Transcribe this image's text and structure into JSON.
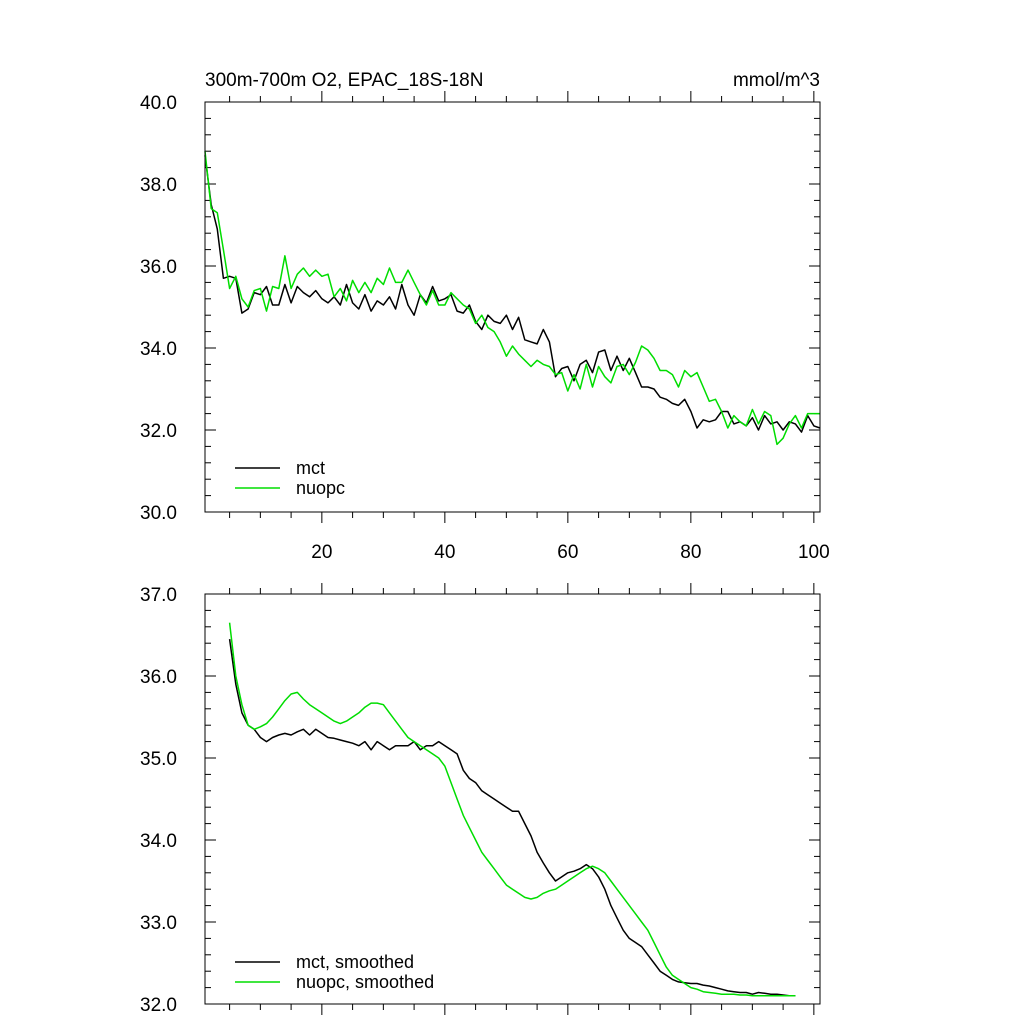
{
  "chart_data": [
    {
      "type": "line",
      "title_left": "300m-700m O2, EPAC_18S-18N",
      "title_right": "mmol/m^3",
      "xlim": [
        1,
        101
      ],
      "ylim": [
        30,
        40
      ],
      "x_ticks": [
        20,
        40,
        60,
        80,
        100
      ],
      "x_tick_labels": [
        "20",
        "40",
        "60",
        "80",
        "100"
      ],
      "y_ticks": [
        30,
        32,
        34,
        36,
        38,
        40
      ],
      "y_tick_labels": [
        "30.0",
        "32.0",
        "34.0",
        "36.0",
        "38.0",
        "40.0"
      ],
      "legend_position": "bottom-left",
      "series": [
        {
          "name": "mct",
          "color": "#000000",
          "x": [
            1,
            2,
            3,
            4,
            5,
            6,
            7,
            8,
            9,
            10,
            11,
            12,
            13,
            14,
            15,
            16,
            17,
            18,
            19,
            20,
            21,
            22,
            23,
            24,
            25,
            26,
            27,
            28,
            29,
            30,
            31,
            32,
            33,
            34,
            35,
            36,
            37,
            38,
            39,
            40,
            41,
            42,
            43,
            44,
            45,
            46,
            47,
            48,
            49,
            50,
            51,
            52,
            53,
            54,
            55,
            56,
            57,
            58,
            59,
            60,
            61,
            62,
            63,
            64,
            65,
            66,
            67,
            68,
            69,
            70,
            71,
            72,
            73,
            74,
            75,
            76,
            77,
            78,
            79,
            80,
            81,
            82,
            83,
            84,
            85,
            86,
            87,
            88,
            89,
            90,
            91,
            92,
            93,
            94,
            95,
            96,
            97,
            98,
            99,
            100,
            101
          ],
          "y": [
            38.7,
            37.5,
            36.9,
            35.7,
            35.75,
            35.7,
            34.85,
            34.95,
            35.35,
            35.3,
            35.5,
            35.05,
            35.05,
            35.55,
            35.1,
            35.5,
            35.35,
            35.25,
            35.4,
            35.2,
            35.1,
            35.25,
            35.05,
            35.55,
            35.1,
            34.95,
            35.3,
            34.9,
            35.15,
            35.05,
            35.25,
            34.95,
            35.55,
            35.05,
            34.8,
            35.3,
            35.1,
            35.5,
            35.15,
            35.2,
            35.3,
            34.9,
            34.85,
            35.05,
            34.65,
            34.45,
            34.8,
            34.65,
            34.6,
            34.8,
            34.45,
            34.75,
            34.2,
            34.15,
            34.1,
            34.45,
            34.15,
            33.3,
            33.5,
            33.55,
            33.2,
            33.6,
            33.7,
            33.4,
            33.9,
            33.95,
            33.45,
            33.8,
            33.45,
            33.75,
            33.4,
            33.05,
            33.05,
            33.0,
            32.8,
            32.75,
            32.65,
            32.6,
            32.75,
            32.45,
            32.05,
            32.25,
            32.2,
            32.25,
            32.45,
            32.45,
            32.15,
            32.2,
            32.1,
            32.3,
            32.0,
            32.35,
            32.15,
            32.2,
            32.0,
            32.2,
            32.15,
            31.95,
            32.35,
            32.1,
            32.05
          ]
        },
        {
          "name": "nuopc",
          "color": "#00dd00",
          "x": [
            1,
            2,
            3,
            4,
            5,
            6,
            7,
            8,
            9,
            10,
            11,
            12,
            13,
            14,
            15,
            16,
            17,
            18,
            19,
            20,
            21,
            22,
            23,
            24,
            25,
            26,
            27,
            28,
            29,
            30,
            31,
            32,
            33,
            34,
            35,
            36,
            37,
            38,
            39,
            40,
            41,
            42,
            43,
            44,
            45,
            46,
            47,
            48,
            49,
            50,
            51,
            52,
            53,
            54,
            55,
            56,
            57,
            58,
            59,
            60,
            61,
            62,
            63,
            64,
            65,
            66,
            67,
            68,
            69,
            70,
            71,
            72,
            73,
            74,
            75,
            76,
            77,
            78,
            79,
            80,
            81,
            82,
            83,
            84,
            85,
            86,
            87,
            88,
            89,
            90,
            91,
            92,
            93,
            94,
            95,
            96,
            97,
            98,
            99,
            100,
            101
          ],
          "y": [
            38.8,
            37.4,
            37.3,
            36.4,
            35.45,
            35.75,
            35.2,
            35.0,
            35.4,
            35.45,
            34.9,
            35.5,
            35.45,
            36.25,
            35.45,
            35.8,
            35.95,
            35.75,
            35.9,
            35.75,
            35.8,
            35.25,
            35.45,
            35.15,
            35.65,
            35.35,
            35.6,
            35.35,
            35.7,
            35.55,
            35.95,
            35.6,
            35.6,
            35.9,
            35.6,
            35.3,
            35.05,
            35.4,
            35.05,
            35.05,
            35.35,
            35.2,
            35.05,
            34.95,
            34.6,
            34.8,
            34.5,
            34.4,
            34.15,
            33.8,
            34.05,
            33.85,
            33.7,
            33.55,
            33.7,
            33.6,
            33.55,
            33.35,
            33.4,
            32.95,
            33.35,
            33.0,
            33.6,
            33.05,
            33.55,
            33.3,
            33.15,
            33.55,
            33.6,
            33.35,
            33.65,
            34.05,
            33.95,
            33.75,
            33.45,
            33.45,
            33.35,
            33.05,
            33.45,
            33.3,
            33.4,
            33.05,
            32.7,
            32.75,
            32.45,
            32.05,
            32.35,
            32.2,
            32.1,
            32.5,
            32.15,
            32.45,
            32.35,
            31.65,
            31.8,
            32.15,
            32.35,
            32.05,
            32.4,
            32.4,
            32.4
          ]
        }
      ]
    },
    {
      "type": "line",
      "xlim": [
        1,
        101
      ],
      "ylim": [
        32,
        37
      ],
      "x_ticks": [
        20,
        40,
        60,
        80,
        100
      ],
      "y_ticks": [
        32,
        33,
        34,
        35,
        36,
        37
      ],
      "y_tick_labels": [
        "32.0",
        "33.0",
        "34.0",
        "35.0",
        "36.0",
        "37.0"
      ],
      "legend_position": "bottom-left",
      "series": [
        {
          "name": "mct, smoothed",
          "color": "#000000",
          "x": [
            5,
            6,
            7,
            8,
            9,
            10,
            11,
            12,
            13,
            14,
            15,
            16,
            17,
            18,
            19,
            20,
            21,
            22,
            23,
            24,
            25,
            26,
            27,
            28,
            29,
            30,
            31,
            32,
            33,
            34,
            35,
            36,
            37,
            38,
            39,
            40,
            41,
            42,
            43,
            44,
            45,
            46,
            47,
            48,
            49,
            50,
            51,
            52,
            53,
            54,
            55,
            56,
            57,
            58,
            59,
            60,
            61,
            62,
            63,
            64,
            65,
            66,
            67,
            68,
            69,
            70,
            71,
            72,
            73,
            74,
            75,
            76,
            77,
            78,
            79,
            80,
            81,
            82,
            83,
            84,
            85,
            86,
            87,
            88,
            89,
            90,
            91,
            92,
            93,
            94,
            95,
            96,
            97
          ],
          "y": [
            36.45,
            35.9,
            35.55,
            35.4,
            35.35,
            35.25,
            35.2,
            35.25,
            35.28,
            35.3,
            35.28,
            35.32,
            35.35,
            35.28,
            35.35,
            35.3,
            35.25,
            35.24,
            35.22,
            35.2,
            35.18,
            35.15,
            35.2,
            35.1,
            35.2,
            35.15,
            35.1,
            35.15,
            35.15,
            35.15,
            35.2,
            35.1,
            35.15,
            35.15,
            35.2,
            35.15,
            35.1,
            35.05,
            34.85,
            34.75,
            34.7,
            34.6,
            34.55,
            34.5,
            34.45,
            34.4,
            34.35,
            34.35,
            34.2,
            34.05,
            33.85,
            33.72,
            33.6,
            33.5,
            33.55,
            33.6,
            33.62,
            33.65,
            33.7,
            33.65,
            33.55,
            33.4,
            33.2,
            33.05,
            32.9,
            32.8,
            32.75,
            32.7,
            32.6,
            32.5,
            32.4,
            32.35,
            32.3,
            32.27,
            32.26,
            32.25,
            32.25,
            32.23,
            32.22,
            32.2,
            32.18,
            32.16,
            32.15,
            32.14,
            32.14,
            32.12,
            32.14,
            32.13,
            32.12,
            32.12,
            32.11,
            32.1,
            32.1
          ]
        },
        {
          "name": "nuopc, smoothed",
          "color": "#00dd00",
          "x": [
            5,
            6,
            7,
            8,
            9,
            10,
            11,
            12,
            13,
            14,
            15,
            16,
            17,
            18,
            19,
            20,
            21,
            22,
            23,
            24,
            25,
            26,
            27,
            28,
            29,
            30,
            31,
            32,
            33,
            34,
            35,
            36,
            37,
            38,
            39,
            40,
            41,
            42,
            43,
            44,
            45,
            46,
            47,
            48,
            49,
            50,
            51,
            52,
            53,
            54,
            55,
            56,
            57,
            58,
            59,
            60,
            61,
            62,
            63,
            64,
            65,
            66,
            67,
            68,
            69,
            70,
            71,
            72,
            73,
            74,
            75,
            76,
            77,
            78,
            79,
            80,
            81,
            82,
            83,
            84,
            85,
            86,
            87,
            88,
            89,
            90,
            91,
            92,
            93,
            94,
            95,
            96,
            97
          ],
          "y": [
            36.65,
            36.0,
            35.65,
            35.4,
            35.35,
            35.38,
            35.42,
            35.5,
            35.6,
            35.7,
            35.78,
            35.8,
            35.72,
            35.65,
            35.6,
            35.55,
            35.5,
            35.45,
            35.42,
            35.45,
            35.5,
            35.55,
            35.62,
            35.67,
            35.67,
            35.65,
            35.55,
            35.45,
            35.35,
            35.25,
            35.2,
            35.15,
            35.1,
            35.05,
            35.0,
            34.9,
            34.7,
            34.5,
            34.3,
            34.15,
            34.0,
            33.85,
            33.75,
            33.65,
            33.55,
            33.45,
            33.4,
            33.35,
            33.3,
            33.28,
            33.3,
            33.35,
            33.38,
            33.4,
            33.45,
            33.5,
            33.55,
            33.6,
            33.65,
            33.68,
            33.65,
            33.6,
            33.5,
            33.4,
            33.3,
            33.2,
            33.1,
            33.0,
            32.9,
            32.75,
            32.6,
            32.45,
            32.35,
            32.3,
            32.25,
            32.2,
            32.18,
            32.15,
            32.14,
            32.13,
            32.12,
            32.12,
            32.12,
            32.11,
            32.11,
            32.1,
            32.1,
            32.1,
            32.1,
            32.1,
            32.1,
            32.1,
            32.1
          ]
        }
      ]
    }
  ]
}
